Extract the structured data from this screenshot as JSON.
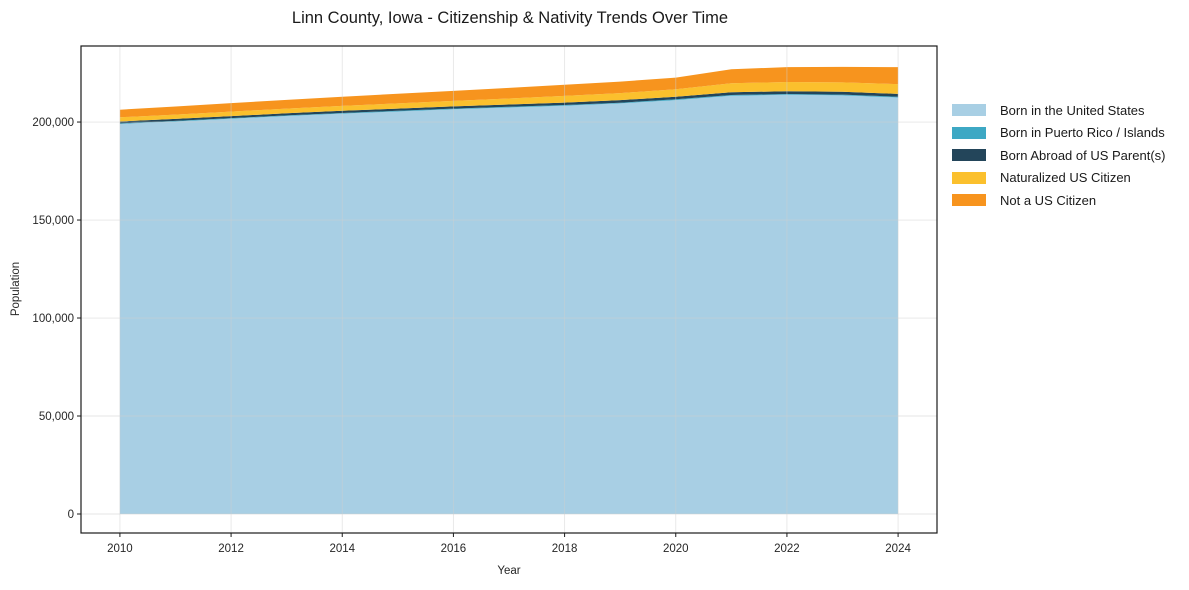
{
  "chart_data": {
    "type": "area",
    "stacked": true,
    "title": "Linn County, Iowa - Citizenship & Nativity Trends Over Time",
    "xlabel": "Year",
    "ylabel": "Population",
    "x": [
      2010,
      2011,
      2012,
      2013,
      2014,
      2015,
      2016,
      2017,
      2018,
      2019,
      2020,
      2021,
      2022,
      2023,
      2024
    ],
    "series": [
      {
        "name": "Born in the United States",
        "color": "#a8cfe4",
        "values": [
          199000,
          200300,
          201700,
          203100,
          204300,
          205400,
          206500,
          207400,
          208300,
          209500,
          211200,
          213400,
          213900,
          213600,
          212500
        ]
      },
      {
        "name": "Born in Puerto Rico / Islands",
        "color": "#3da8c4",
        "values": [
          300,
          300,
          310,
          310,
          320,
          330,
          350,
          360,
          380,
          390,
          400,
          410,
          420,
          420,
          430
        ]
      },
      {
        "name": "Born Abroad of US Parent(s)",
        "color": "#23455a",
        "values": [
          1000,
          1010,
          1030,
          1060,
          1090,
          1120,
          1150,
          1200,
          1250,
          1280,
          1310,
          1380,
          1400,
          1410,
          1420
        ]
      },
      {
        "name": "Naturalized US Citizen",
        "color": "#fbc02d",
        "values": [
          2100,
          2200,
          2300,
          2400,
          2500,
          2650,
          2800,
          3050,
          3400,
          3600,
          3800,
          4600,
          4700,
          4800,
          5000
        ]
      },
      {
        "name": "Not a US Citizen",
        "color": "#f7941e",
        "values": [
          3900,
          4100,
          4300,
          4450,
          4700,
          4900,
          5100,
          5400,
          5650,
          5850,
          5950,
          7100,
          7600,
          7900,
          8700
        ]
      }
    ],
    "xticks": {
      "values": [
        2010,
        2012,
        2014,
        2016,
        2018,
        2020,
        2022,
        2024
      ],
      "labels": [
        "2010",
        "2012",
        "2014",
        "2016",
        "2018",
        "2020",
        "2022",
        "2024"
      ]
    },
    "yticks": {
      "values": [
        0,
        50000,
        100000,
        150000,
        200000
      ],
      "labels": [
        "0",
        "50,000",
        "100,000",
        "150,000",
        "200,000"
      ]
    },
    "xlim": [
      2009.3,
      2024.7
    ],
    "ylim": [
      -9700,
      238800
    ],
    "grid": true,
    "legend_position": "right-outside",
    "colors": {
      "grid": "#cfcfcf",
      "spine": "#1a1a1a",
      "tick": "#1a1a1a",
      "text": "#262626",
      "background": "#ffffff"
    }
  }
}
